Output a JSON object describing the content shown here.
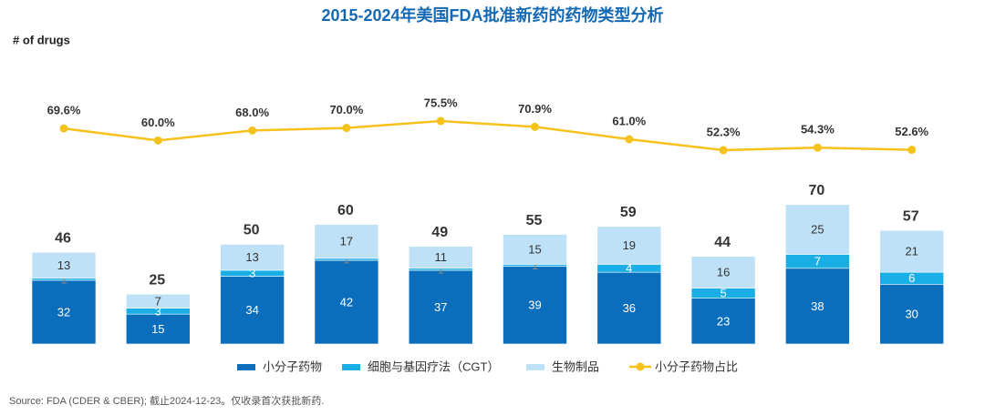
{
  "chart_data": {
    "type": "bar",
    "stacked": true,
    "title": "2015-2024年美国FDA批准新药的药物类型分析",
    "y_label": "# of drugs",
    "source": "Source: FDA (CDER & CBER); 截止2024-12-23。仅收录首次获批新药.",
    "series": [
      {
        "name": "小分子药物",
        "color": "#0a6ebd",
        "values": [
          32,
          15,
          34,
          42,
          37,
          39,
          36,
          23,
          38,
          30
        ]
      },
      {
        "name": "细胞与基因疗法（CGT）",
        "color": "#1aaee6",
        "values": [
          1,
          3,
          3,
          1,
          1,
          1,
          4,
          5,
          7,
          6
        ]
      },
      {
        "name": "生物制品",
        "color": "#bfe1f7",
        "values": [
          13,
          7,
          13,
          17,
          11,
          15,
          19,
          16,
          25,
          21
        ]
      },
      {
        "name": "小分子药物占比",
        "type": "line",
        "color": "#f5c21b",
        "values": [
          69.6,
          60.0,
          68.0,
          70.0,
          75.5,
          70.9,
          61.0,
          52.3,
          54.3,
          52.6
        ],
        "value_labels": [
          "69.6%",
          "60.0%",
          "68.0%",
          "70.0%",
          "75.5%",
          "70.9%",
          "61.0%",
          "52.3%",
          "54.3%",
          "52.6%"
        ]
      }
    ],
    "totals": [
      46,
      25,
      50,
      60,
      49,
      55,
      59,
      44,
      70,
      57
    ]
  }
}
